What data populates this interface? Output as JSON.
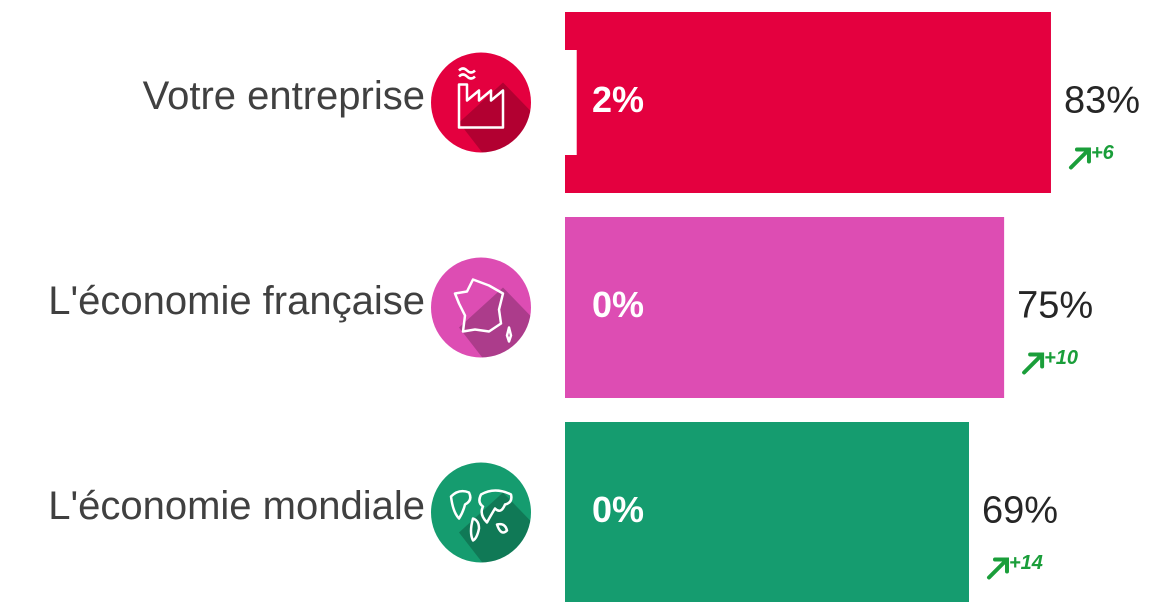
{
  "chart_data": {
    "type": "hbar",
    "categories": [
      "Votre entreprise",
      "L'économie française",
      "L'économie mondiale"
    ],
    "values": [
      83,
      75,
      69
    ],
    "value_labels": [
      "83%",
      "75%",
      "69%"
    ],
    "colors": [
      "#e4003f",
      "#dd4db3",
      "#159c6f"
    ],
    "xlim": [
      0,
      100
    ],
    "inner": {
      "values": [
        2,
        0,
        0
      ],
      "value_labels": [
        "2%",
        "0%",
        "0%"
      ],
      "color": "#ffffff"
    },
    "changes": {
      "values": [
        6,
        10,
        14
      ],
      "value_labels": [
        "+6",
        "+10",
        "+14"
      ],
      "color": "#1a9e3a"
    }
  }
}
